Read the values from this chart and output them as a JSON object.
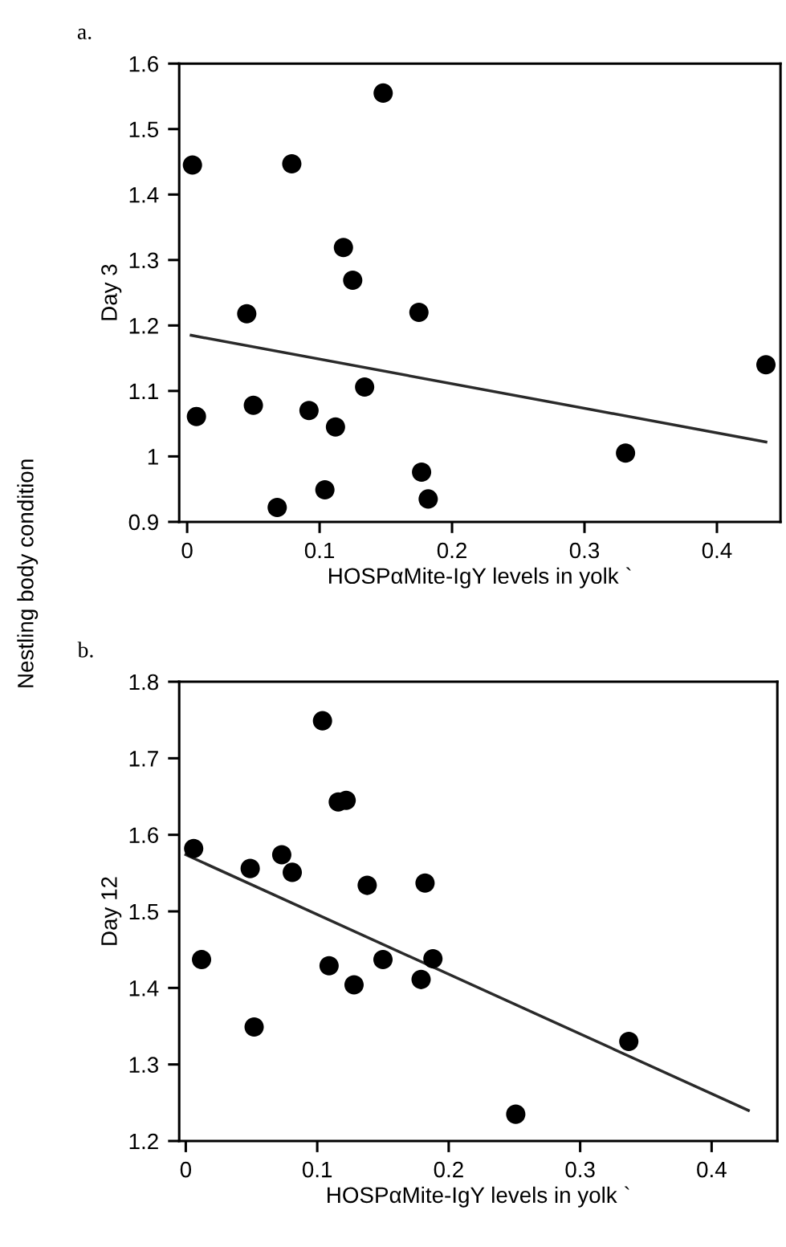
{
  "chart_data": [
    {
      "type": "scatter",
      "title": "a.",
      "ylabel": "Day 3",
      "xlabel": "HOSPαMite-IgY levels in yolk `",
      "annotations": [
        "Nestling body condition"
      ],
      "grid": false,
      "legend": false,
      "xlim": [
        -0.006,
        0.448
      ],
      "ylim": [
        0.9,
        1.6
      ],
      "xticks": [
        0,
        0.1,
        0.2,
        0.3,
        0.4
      ],
      "yticks": [
        0.9,
        1,
        1.1,
        1.2,
        1.3,
        1.4,
        1.5,
        1.6
      ],
      "series": [
        {
          "marker": "circle",
          "color": "#000000",
          "x": [
            0.004,
            0.007,
            0.045,
            0.05,
            0.068,
            0.079,
            0.092,
            0.104,
            0.112,
            0.118,
            0.125,
            0.134,
            0.148,
            0.175,
            0.177,
            0.182,
            0.331,
            0.437
          ],
          "values": [
            1.445,
            1.061,
            1.218,
            1.078,
            0.922,
            1.447,
            1.07,
            0.949,
            1.045,
            1.319,
            1.269,
            1.106,
            1.555,
            1.22,
            0.976,
            0.935,
            1.005,
            1.14
          ]
        },
        {
          "type": "line",
          "color": "#2a2a2a",
          "x": [
            0.003,
            0.437
          ],
          "values": [
            1.185,
            1.022
          ]
        }
      ]
    },
    {
      "type": "scatter",
      "title": "b.",
      "ylabel": "Day 12",
      "xlabel": "HOSPαMite-IgY levels in yolk `",
      "grid": false,
      "legend": false,
      "xlim": [
        -0.005,
        0.45
      ],
      "ylim": [
        1.2,
        1.8
      ],
      "xticks": [
        0,
        0.1,
        0.2,
        0.3,
        0.4
      ],
      "yticks": [
        1.2,
        1.3,
        1.4,
        1.5,
        1.6,
        1.7,
        1.8
      ],
      "series": [
        {
          "marker": "circle",
          "color": "#000000",
          "x": [
            0.006,
            0.012,
            0.049,
            0.052,
            0.073,
            0.081,
            0.104,
            0.109,
            0.116,
            0.122,
            0.128,
            0.138,
            0.15,
            0.179,
            0.182,
            0.188,
            0.251,
            0.337
          ],
          "values": [
            1.582,
            1.437,
            1.556,
            1.349,
            1.574,
            1.551,
            1.749,
            1.429,
            1.643,
            1.645,
            1.404,
            1.534,
            1.437,
            1.411,
            1.537,
            1.438,
            1.235,
            1.33
          ]
        },
        {
          "type": "line",
          "color": "#2a2a2a",
          "x": [
            0.0,
            0.428
          ],
          "values": [
            1.574,
            1.24
          ]
        }
      ]
    }
  ]
}
